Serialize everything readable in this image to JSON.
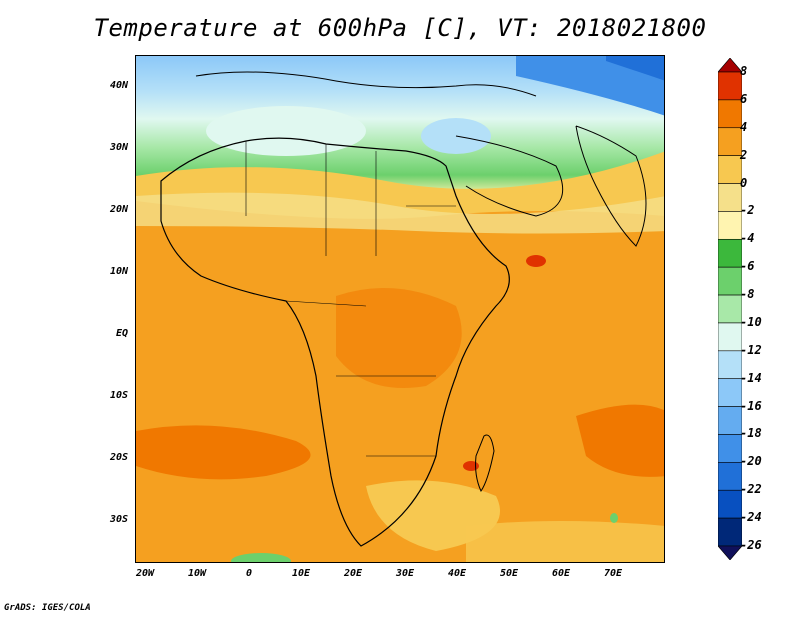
{
  "title": "Temperature at 600hPa [C], VT: 2018021800",
  "footer": "GrADS: IGES/COLA",
  "map": {
    "lat_labels": [
      "40N",
      "30N",
      "20N",
      "10N",
      "EQ",
      "10S",
      "20S",
      "30S"
    ],
    "lon_labels": [
      "20W",
      "10W",
      "0",
      "10E",
      "20E",
      "30E",
      "40E",
      "50E",
      "60E",
      "70E"
    ]
  },
  "colorbar": {
    "levels": [
      "8",
      "6",
      "4",
      "2",
      "0",
      "-2",
      "-4",
      "-6",
      "-8",
      "-10",
      "-12",
      "-14",
      "-16",
      "-18",
      "-20",
      "-22",
      "-24",
      "-26"
    ],
    "colors": [
      "#a50000",
      "#e03200",
      "#f07800",
      "#f5a020",
      "#f7c850",
      "#f5e08a",
      "#fff4b0",
      "#3cb83c",
      "#6cd06c",
      "#a8e8a8",
      "#e0f8f0",
      "#b4e0f8",
      "#8cc8f8",
      "#64acf0",
      "#4090e8",
      "#2070d8",
      "#0850c0",
      "#002878",
      "#10105a"
    ]
  }
}
